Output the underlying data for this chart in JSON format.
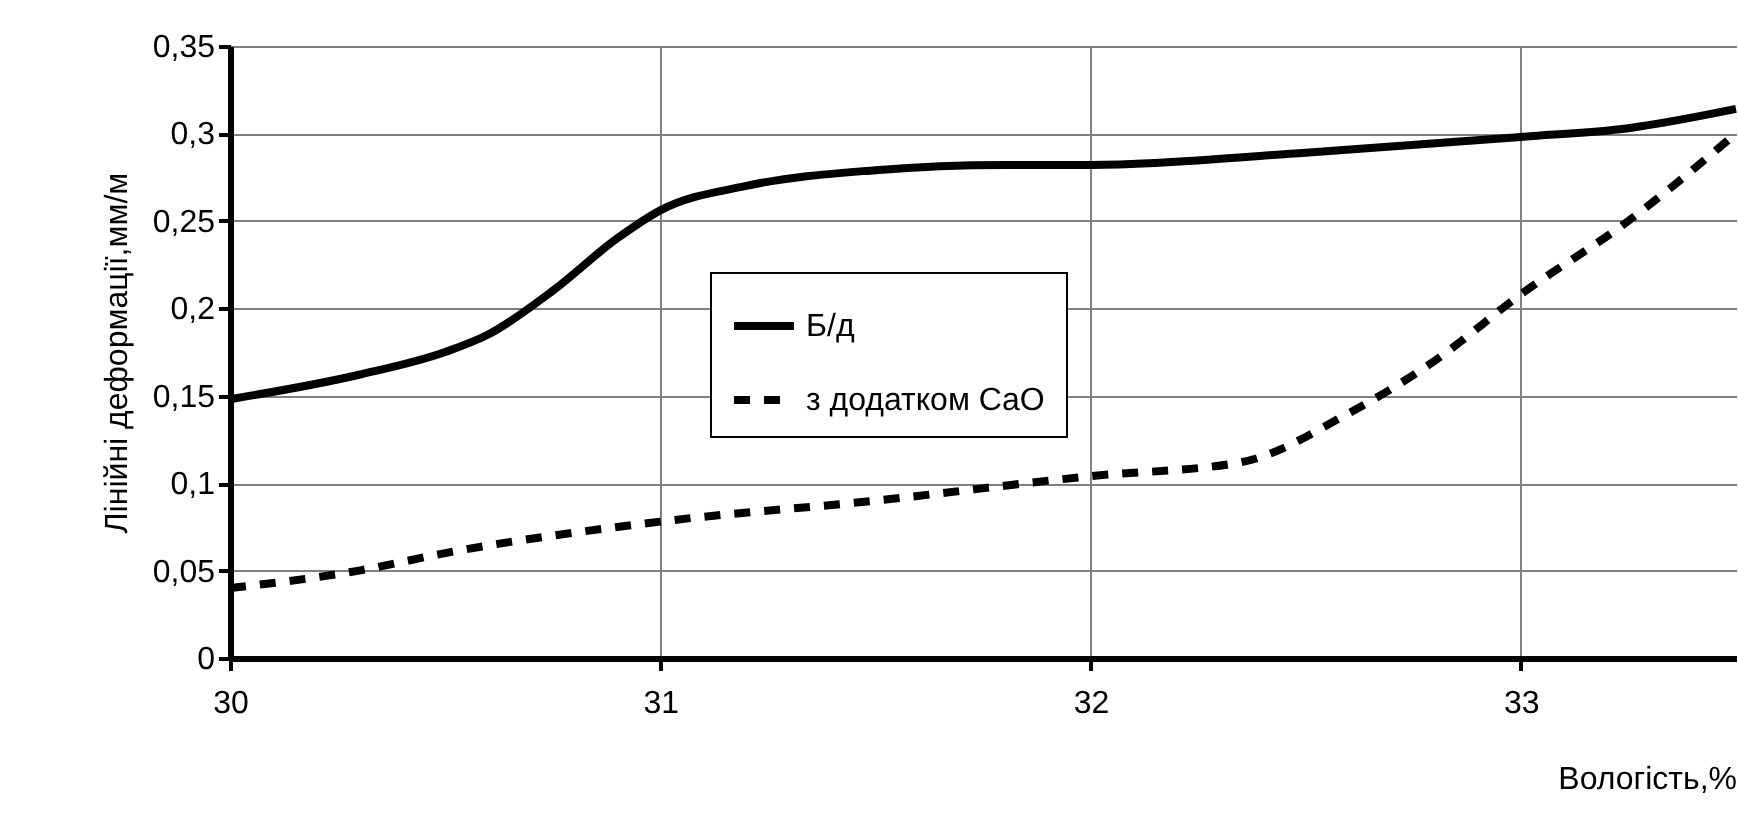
{
  "chart_data": {
    "type": "line",
    "xlabel": "Вологість,%",
    "ylabel": "Лінійні деформації,мм/м",
    "xlim": [
      30,
      33.5
    ],
    "xticks": [
      30,
      31,
      32,
      33
    ],
    "ylim": [
      0,
      0.35
    ],
    "yticks": [
      0,
      {
        "value": 0.05,
        "label": "0,05"
      },
      {
        "value": 0.1,
        "label": "0,1"
      },
      {
        "value": 0.15,
        "label": "0,15"
      },
      {
        "value": 0.2,
        "label": "0,2"
      },
      {
        "value": 0.25,
        "label": "0,25"
      },
      {
        "value": 0.3,
        "label": "0,3"
      },
      {
        "value": 0.35,
        "label": "0,35"
      }
    ],
    "grid": true,
    "legend": "center",
    "marker": "none",
    "series": [
      {
        "name": "Б/д",
        "color": "#000000",
        "line_style": "solid",
        "x": [
          30,
          30.3,
          30.5,
          30.6,
          30.75,
          30.9,
          31,
          31.2,
          31.5,
          31.8,
          32,
          32.5,
          33,
          33.25,
          33.5
        ],
        "values": [
          0.148,
          0.162,
          0.175,
          0.185,
          0.21,
          0.24,
          0.256,
          0.27,
          0.279,
          0.282,
          0.282,
          0.289,
          0.298,
          0.303,
          0.314
        ]
      },
      {
        "name": "з додатком CaO",
        "color": "#000000",
        "line_style": "dashed",
        "x": [
          30,
          30.3,
          30.5,
          31,
          31.5,
          32,
          32.35,
          32.6,
          32.8,
          33,
          33.25,
          33.5
        ],
        "values": [
          0.04,
          0.05,
          0.06,
          0.078,
          0.09,
          0.104,
          0.112,
          0.14,
          0.17,
          0.208,
          0.25,
          0.3
        ]
      }
    ]
  }
}
